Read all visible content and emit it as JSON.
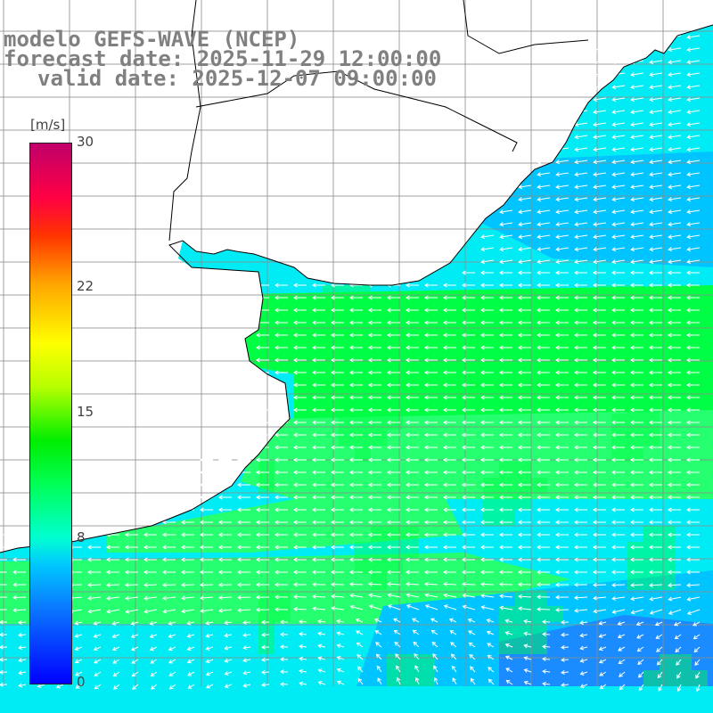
{
  "title": {
    "line1": "modelo GEFS-WAVE (NCEP)",
    "line2": "forecast date: 2025-11-29 12:00:00",
    "line3": "valid date: 2025-12-07 09:00:00"
  },
  "colorbar": {
    "unit": "[m/s]",
    "ticks": [
      {
        "label": "30",
        "value": 30
      },
      {
        "label": "22",
        "value": 22
      },
      {
        "label": "15",
        "value": 15
      },
      {
        "label": "8",
        "value": 8
      },
      {
        "label": "0",
        "value": 0
      }
    ],
    "range": [
      0,
      30
    ],
    "colors": [
      "#0000ff",
      "#0a78ff",
      "#00c8ff",
      "#00ffd0",
      "#00ff55",
      "#00ee00",
      "#b8ff00",
      "#ffff00",
      "#ffa500",
      "#ff3300",
      "#ff0044",
      "#c0006a"
    ]
  },
  "map": {
    "variable": "wind speed and direction",
    "ocean_colors": {
      "cyan": "#00ecf4",
      "sky": "#00c4ff",
      "blue": "#1a8cff",
      "green": "#00ff44",
      "green_light": "#25ff70"
    },
    "land_color": "#ffffff",
    "grid_color": "#8c8c8c",
    "dominant_wind_direction": "westward"
  }
}
